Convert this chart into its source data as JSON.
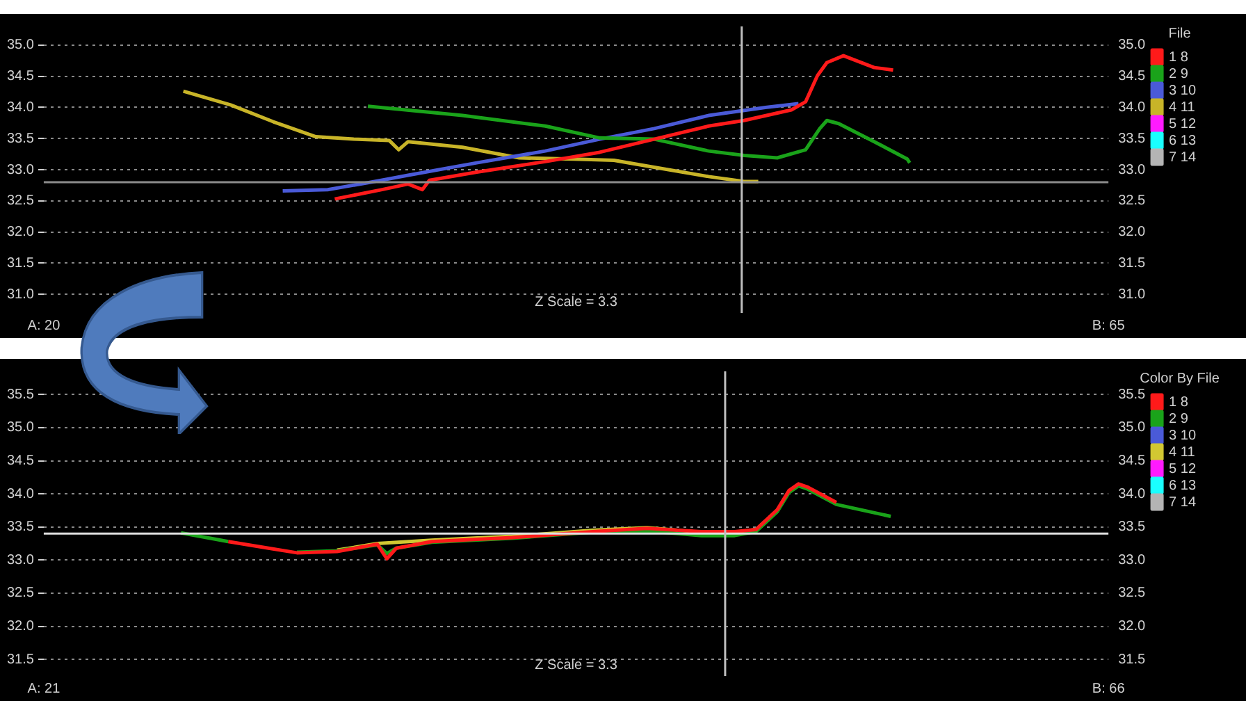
{
  "chart_data": [
    {
      "type": "line",
      "legend_title": "File",
      "legend": "top right",
      "grid": "y",
      "marker": "none",
      "line_style": "solid",
      "xlim": [
        20,
        65
      ],
      "xticks": [
        {
          "value": 20,
          "label": "A: 20"
        },
        {
          "value": 65,
          "label": "B: 65"
        }
      ],
      "annotations": [
        "Z Scale = 3.3"
      ],
      "ylim": [
        30.7,
        35.3
      ],
      "yticks": [
        {
          "value": 31,
          "label": "31.0"
        },
        {
          "value": 31.5,
          "label": "31.5"
        },
        {
          "value": 32,
          "label": "32.0"
        },
        {
          "value": 32.5,
          "label": "32.5"
        },
        {
          "value": 33,
          "label": "33.0"
        },
        {
          "value": 33.5,
          "label": "33.5"
        },
        {
          "value": 34,
          "label": "34.0"
        },
        {
          "value": 34.5,
          "label": "34.5"
        },
        {
          "value": 35,
          "label": "35.0"
        }
      ],
      "y2lim": [
        30.7,
        35.3
      ],
      "y2ticks": [
        {
          "value": 31,
          "label": "31.0"
        },
        {
          "value": 31.5,
          "label": "31.5"
        },
        {
          "value": 32,
          "label": "32.0"
        },
        {
          "value": 32.5,
          "label": "32.5"
        },
        {
          "value": 33,
          "label": "33.0"
        },
        {
          "value": 33.5,
          "label": "33.5"
        },
        {
          "value": 34,
          "label": "34.0"
        },
        {
          "value": 34.5,
          "label": "34.5"
        },
        {
          "value": 35,
          "label": "35.0"
        }
      ],
      "ref_lines": [
        {
          "axis": "y",
          "value": 32.8,
          "color": "#8c8c8c"
        },
        {
          "axis": "x",
          "value": 49.5,
          "color": "#bfbfbf"
        }
      ],
      "series": [
        {
          "name": "1 8",
          "color": "#ff1a1a",
          "x": [
            32.3,
            34.3,
            35.4,
            36.0,
            36.3,
            38.3,
            41.2,
            43.5,
            45.8,
            48.1,
            49.6,
            51.6,
            52.2,
            52.7,
            53.1,
            53.8,
            55.1,
            55.9
          ],
          "values": [
            32.53,
            32.68,
            32.77,
            32.68,
            32.83,
            32.96,
            33.13,
            33.28,
            33.49,
            33.7,
            33.79,
            33.96,
            34.09,
            34.51,
            34.72,
            34.83,
            34.64,
            34.6
          ]
        },
        {
          "name": "2 9",
          "color": "#1aa31a",
          "x": [
            33.7,
            37.7,
            41.2,
            43.5,
            45.8,
            48.1,
            49.6,
            51.0,
            52.2,
            52.8,
            53.1,
            53.6,
            55.1,
            56.5,
            56.6
          ],
          "values": [
            34.02,
            33.87,
            33.7,
            33.51,
            33.49,
            33.3,
            33.23,
            33.19,
            33.32,
            33.66,
            33.79,
            33.74,
            33.45,
            33.17,
            33.11
          ]
        },
        {
          "name": "3 10",
          "color": "#4a5ad8",
          "x": [
            30.1,
            32.0,
            33.7,
            35.4,
            38.3,
            41.2,
            43.5,
            45.8,
            48.1,
            50.5,
            51.9
          ],
          "values": [
            32.66,
            32.68,
            32.79,
            32.91,
            33.11,
            33.3,
            33.49,
            33.66,
            33.87,
            34.0,
            34.06
          ]
        },
        {
          "name": "4 11",
          "color": "#c8b428",
          "x": [
            25.9,
            27.9,
            29.7,
            31.5,
            33.1,
            34.6,
            35.0,
            35.4,
            37.7,
            40.1,
            42.4,
            44.1,
            45.8,
            48.1,
            49.6,
            50.2
          ],
          "values": [
            34.26,
            34.04,
            33.77,
            33.53,
            33.49,
            33.47,
            33.32,
            33.45,
            33.36,
            33.19,
            33.17,
            33.15,
            33.04,
            32.89,
            32.81,
            32.81
          ]
        },
        {
          "name": "5 12",
          "color": "#ff1aff"
        },
        {
          "name": "6 13",
          "color": "#1affff"
        },
        {
          "name": "7 14",
          "color": "#b4b4b4"
        }
      ]
    },
    {
      "type": "line",
      "legend_title": "Color By File",
      "legend": "top right",
      "grid": "y",
      "marker": "none",
      "line_style": "solid",
      "xlim": [
        21,
        66
      ],
      "xticks": [
        {
          "value": 21,
          "label": "A: 21"
        },
        {
          "value": 66,
          "label": "B: 66"
        }
      ],
      "annotations": [
        "Z Scale = 3.3"
      ],
      "ylim": [
        31.25,
        35.85
      ],
      "yticks": [
        {
          "value": 31.5,
          "label": "31.5"
        },
        {
          "value": 32,
          "label": "32.0"
        },
        {
          "value": 32.5,
          "label": "32.5"
        },
        {
          "value": 33,
          "label": "33.0"
        },
        {
          "value": 33.5,
          "label": "33.5"
        },
        {
          "value": 34,
          "label": "34.0"
        },
        {
          "value": 34.5,
          "label": "34.5"
        },
        {
          "value": 35,
          "label": "35.0"
        },
        {
          "value": 35.5,
          "label": "35.5"
        }
      ],
      "y2lim": [
        31.25,
        35.85
      ],
      "y2ticks": [
        {
          "value": 31.5,
          "label": "31.5"
        },
        {
          "value": 32,
          "label": "32.0"
        },
        {
          "value": 32.5,
          "label": "32.5"
        },
        {
          "value": 33,
          "label": "33.0"
        },
        {
          "value": 33.5,
          "label": "33.5"
        },
        {
          "value": 34,
          "label": "34.0"
        },
        {
          "value": 34.5,
          "label": "34.5"
        },
        {
          "value": 35,
          "label": "35.0"
        },
        {
          "value": 35.5,
          "label": "35.5"
        }
      ],
      "ref_lines": [
        {
          "axis": "y",
          "value": 33.4,
          "color": "#e0e0e0"
        },
        {
          "axis": "x",
          "value": 49.8,
          "color": "#bfbfbf"
        }
      ],
      "series": [
        {
          "name": "1 8",
          "color": "#ff1a1a",
          "x": [
            28.8,
            30.5,
            31.7,
            33.4,
            35.1,
            35.5,
            35.9,
            37.4,
            40.8,
            44.2,
            46.5,
            48.8,
            50.2,
            51.1,
            52.0,
            52.5,
            52.9,
            53.3,
            54.5
          ],
          "values": [
            33.28,
            33.18,
            33.11,
            33.13,
            33.24,
            33.02,
            33.18,
            33.28,
            33.34,
            33.43,
            33.48,
            33.43,
            33.43,
            33.46,
            33.76,
            34.05,
            34.15,
            34.1,
            33.87
          ]
        },
        {
          "name": "2 9",
          "color": "#1aa31a",
          "x": [
            26.8,
            28.8,
            30.5,
            31.7,
            33.4,
            35.1,
            35.5,
            35.9,
            37.4,
            40.8,
            44.2,
            46.5,
            48.8,
            50.2,
            51.1,
            52.0,
            52.5,
            52.9,
            53.3,
            54.5,
            56.8
          ],
          "values": [
            33.41,
            33.28,
            null,
            33.12,
            33.14,
            33.23,
            33.1,
            33.18,
            33.27,
            33.33,
            33.42,
            33.44,
            33.37,
            33.37,
            33.43,
            33.73,
            34.02,
            34.12,
            34.07,
            33.84,
            33.66
          ]
        },
        {
          "name": "3 10",
          "color": "#4a5ad8"
        },
        {
          "name": "4 11",
          "color": "#d2c832",
          "x": [
            33.4,
            35.1,
            37.4,
            40.8,
            44.2,
            46.5,
            48.8,
            50.2,
            51.1,
            52.0,
            52.5,
            52.9
          ],
          "values": [
            33.15,
            33.25,
            33.3,
            33.36,
            33.45,
            33.49,
            33.42,
            33.42,
            33.46,
            33.75,
            34.04,
            34.13
          ]
        },
        {
          "name": "5 12",
          "color": "#ff1aff"
        },
        {
          "name": "6 13",
          "color": "#1affff"
        },
        {
          "name": "7 14",
          "color": "#b4b4b4"
        }
      ]
    }
  ]
}
